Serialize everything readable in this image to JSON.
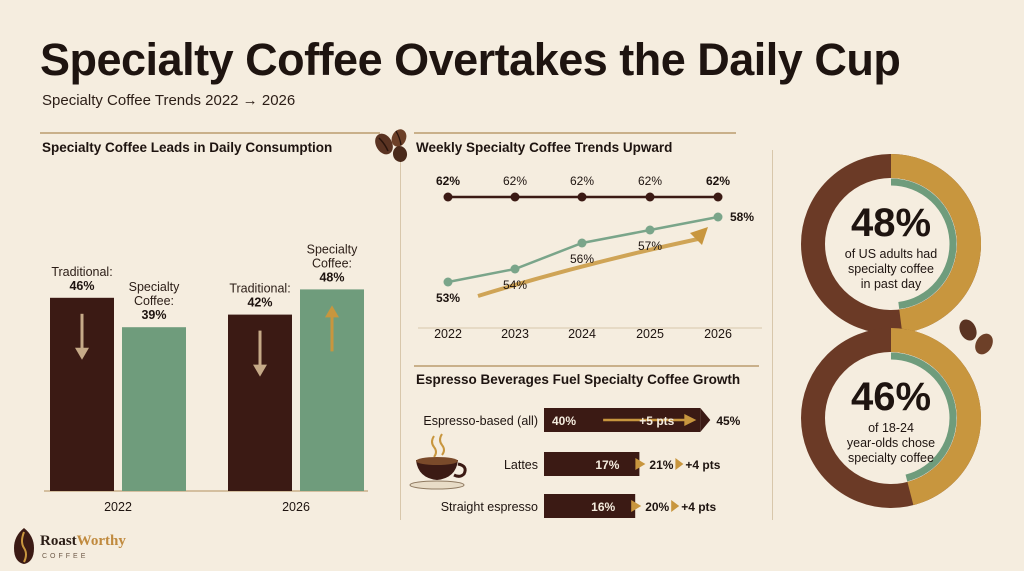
{
  "title": "Specialty Coffee Overtakes the Daily Cup",
  "subtitle": "Specialty Coffee Trends 2022 → 2026",
  "colors": {
    "dark_brown": "#3b1a14",
    "green": "#6f9c7c",
    "gold": "#c8963e",
    "background": "#f5eddf"
  },
  "icons": [
    "coffee-beans-icon",
    "coffee-cup-icon",
    "roastworthy-logo-icon"
  ],
  "chart_data": [
    {
      "type": "bar",
      "title": "Specialty Coffee Leads in Daily Consumption",
      "categories": [
        "2022",
        "2026"
      ],
      "series": [
        {
          "name": "Traditional",
          "values": [
            46,
            42
          ],
          "labels": [
            "Traditional:",
            "Traditional:"
          ]
        },
        {
          "name": "Specialty Coffee",
          "values": [
            39,
            48
          ],
          "labels": [
            "Specialty Coffee:",
            "Specialty Coffee:"
          ]
        }
      ],
      "value_labels": [
        [
          "46%",
          "42%"
        ],
        [
          "39%",
          "48%"
        ]
      ],
      "ylim": [
        0,
        60
      ]
    },
    {
      "type": "line",
      "title": "Weekly Specialty Coffee Trends Upward",
      "x": [
        "2022",
        "2023",
        "2024",
        "2025",
        "2026"
      ],
      "series": [
        {
          "values": [
            62,
            62,
            62,
            62,
            62
          ],
          "labels": [
            "62%",
            "62%",
            "62%",
            "62%",
            "62%"
          ]
        },
        {
          "values": [
            53,
            54,
            56,
            57,
            58
          ],
          "labels": [
            "53%",
            "54%",
            "56%",
            "57%",
            "58%"
          ]
        }
      ],
      "ylim": [
        50,
        64
      ]
    },
    {
      "type": "bar",
      "title": "Espresso Beverages Fuel Specialty Coffee Growth",
      "categories": [
        "Espresso-based (all)",
        "Lattes",
        "Straight espresso"
      ],
      "start_values": [
        40,
        17,
        16
      ],
      "end_values": [
        45,
        21,
        20
      ],
      "start_labels": [
        "40%",
        "17%",
        "16%"
      ],
      "end_labels": [
        "45%",
        "21%",
        "20%"
      ],
      "change_labels": [
        "+5 pts",
        "+4 pts",
        "+4 pts"
      ]
    },
    {
      "type": "pie",
      "value": 48,
      "value_label": "48%",
      "caption": "of US adults had specialty coffee in past day"
    },
    {
      "type": "pie",
      "value": 46,
      "value_label": "46%",
      "caption": "of 18-24 year-olds chose specialty coffee"
    }
  ],
  "brand": {
    "name_part1": "Roast",
    "name_part2": "Worthy",
    "sub": "COFFEE"
  }
}
